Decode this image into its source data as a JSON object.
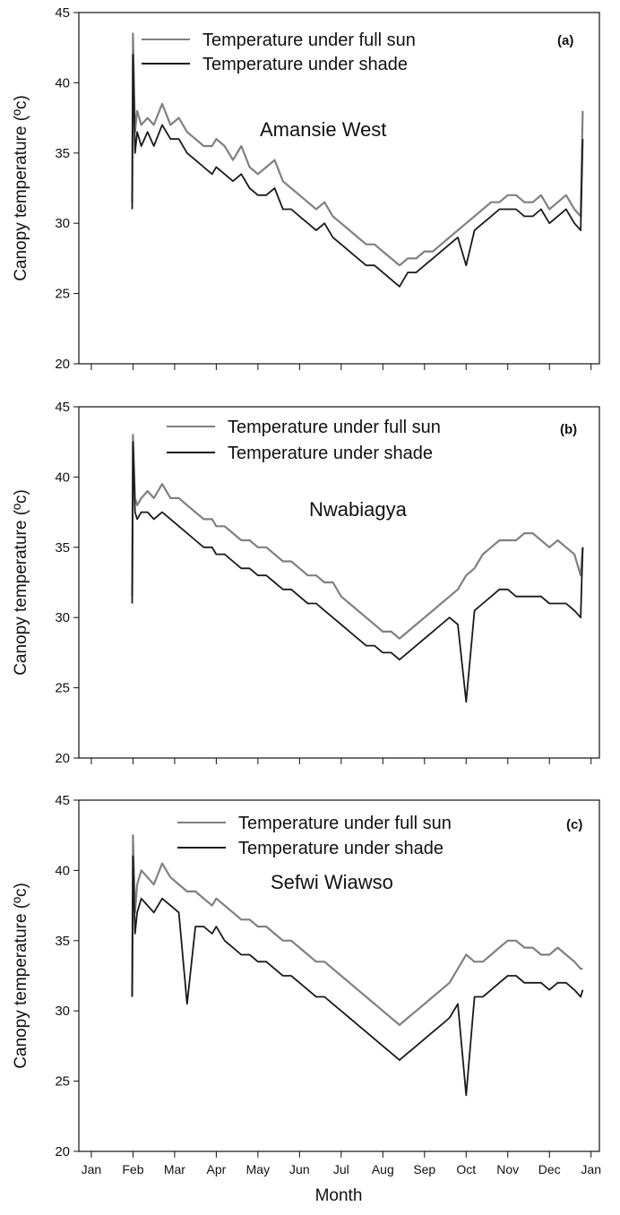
{
  "chart_data": [
    {
      "type": "line",
      "panel": "(a)",
      "annotation": "Amansie West",
      "ylabel": "Canopy temperature (ºc)",
      "xlabel": "",
      "ylim": [
        20,
        45
      ],
      "y_ticks": [
        20,
        25,
        30,
        35,
        40,
        45
      ],
      "legend": "top-left",
      "grid": false,
      "x_unit": "month index (0 = Jan, 12 = Jan of following year)",
      "series": [
        {
          "name": "Temperature under full sun",
          "color": "#808080",
          "x": [
            0.98,
            1.0,
            1.05,
            1.1,
            1.2,
            1.35,
            1.5,
            1.7,
            1.9,
            2.1,
            2.3,
            2.5,
            2.7,
            2.9,
            3.0,
            3.2,
            3.4,
            3.6,
            3.8,
            4.0,
            4.2,
            4.4,
            4.6,
            4.8,
            5.0,
            5.2,
            5.4,
            5.6,
            5.8,
            6.0,
            6.2,
            6.4,
            6.6,
            6.8,
            7.0,
            7.2,
            7.4,
            7.6,
            7.8,
            8.0,
            8.2,
            8.4,
            8.6,
            8.8,
            9.0,
            9.2,
            9.4,
            9.6,
            9.8,
            10.0,
            10.2,
            10.4,
            10.6,
            10.8,
            11.0,
            11.2,
            11.4,
            11.6,
            11.75,
            11.8
          ],
          "y": [
            31.5,
            43.5,
            36.5,
            38,
            37,
            37.5,
            37,
            38.5,
            37,
            37.5,
            36.5,
            36,
            35.5,
            35.5,
            36,
            35.5,
            34.5,
            35.5,
            34,
            33.5,
            34,
            34.5,
            33,
            32.5,
            32,
            31.5,
            31,
            31.5,
            30.5,
            30,
            29.5,
            29,
            28.5,
            28.5,
            28,
            27.5,
            27,
            27.5,
            27.5,
            28,
            28,
            28.5,
            29,
            29.5,
            30,
            30.5,
            31,
            31.5,
            31.5,
            32,
            32,
            31.5,
            31.5,
            32,
            31,
            31.5,
            32,
            31,
            30.5,
            38
          ]
        },
        {
          "name": "Temperature under shade",
          "color": "#1a1a1a",
          "x": [
            0.98,
            1.0,
            1.05,
            1.1,
            1.2,
            1.35,
            1.5,
            1.7,
            1.9,
            2.1,
            2.3,
            2.5,
            2.7,
            2.9,
            3.0,
            3.2,
            3.4,
            3.6,
            3.8,
            4.0,
            4.2,
            4.4,
            4.6,
            4.8,
            5.0,
            5.2,
            5.4,
            5.6,
            5.8,
            6.0,
            6.2,
            6.4,
            6.6,
            6.8,
            7.0,
            7.2,
            7.4,
            7.6,
            7.8,
            8.0,
            8.2,
            8.4,
            8.6,
            8.8,
            9.0,
            9.2,
            9.4,
            9.6,
            9.8,
            10.0,
            10.2,
            10.4,
            10.6,
            10.8,
            11.0,
            11.2,
            11.4,
            11.6,
            11.75,
            11.8
          ],
          "y": [
            31,
            42,
            35,
            36.5,
            35.5,
            36.5,
            35.5,
            37,
            36,
            36,
            35,
            34.5,
            34,
            33.5,
            34,
            33.5,
            33,
            33.5,
            32.5,
            32,
            32,
            32.5,
            31,
            31,
            30.5,
            30,
            29.5,
            30,
            29,
            28.5,
            28,
            27.5,
            27,
            27,
            26.5,
            26,
            25.5,
            26.5,
            26.5,
            27,
            27.5,
            28,
            28.5,
            29,
            27,
            29.5,
            30,
            30.5,
            31,
            31,
            31,
            30.5,
            30.5,
            31,
            30,
            30.5,
            31,
            30,
            29.5,
            36
          ]
        }
      ]
    },
    {
      "type": "line",
      "panel": "(b)",
      "annotation": "Nwabiagya",
      "ylabel": "Canopy temperature (ºc)",
      "xlabel": "",
      "ylim": [
        20,
        45
      ],
      "y_ticks": [
        20,
        25,
        30,
        35,
        40,
        45
      ],
      "legend": "top-center",
      "grid": false,
      "x_unit": "month index (0 = Jan, 12 = Jan of following year)",
      "series": [
        {
          "name": "Temperature under full sun",
          "color": "#808080",
          "x": [
            0.98,
            1.0,
            1.05,
            1.1,
            1.2,
            1.35,
            1.5,
            1.7,
            1.9,
            2.1,
            2.3,
            2.5,
            2.7,
            2.9,
            3.0,
            3.2,
            3.4,
            3.6,
            3.8,
            4.0,
            4.2,
            4.4,
            4.6,
            4.8,
            5.0,
            5.2,
            5.4,
            5.6,
            5.8,
            6.0,
            6.2,
            6.4,
            6.6,
            6.8,
            7.0,
            7.2,
            7.4,
            7.6,
            7.8,
            8.0,
            8.2,
            8.4,
            8.6,
            8.8,
            9.0,
            9.2,
            9.4,
            9.6,
            9.8,
            10.0,
            10.2,
            10.4,
            10.6,
            10.8,
            11.0,
            11.2,
            11.4,
            11.6,
            11.75,
            11.8
          ],
          "y": [
            31.5,
            43,
            38.5,
            38,
            38.5,
            39,
            38.5,
            39.5,
            38.5,
            38.5,
            38,
            37.5,
            37,
            37,
            36.5,
            36.5,
            36,
            35.5,
            35.5,
            35,
            35,
            34.5,
            34,
            34,
            33.5,
            33,
            33,
            32.5,
            32.5,
            31.5,
            31,
            30.5,
            30,
            29.5,
            29,
            29,
            28.5,
            29,
            29.5,
            30,
            30.5,
            31,
            31.5,
            32,
            33,
            33.5,
            34.5,
            35,
            35.5,
            35.5,
            35.5,
            36,
            36,
            35.5,
            35,
            35.5,
            35,
            34.5,
            33,
            35
          ]
        },
        {
          "name": "Temperature under shade",
          "color": "#1a1a1a",
          "x": [
            0.98,
            1.0,
            1.05,
            1.1,
            1.2,
            1.35,
            1.5,
            1.7,
            1.9,
            2.1,
            2.3,
            2.5,
            2.7,
            2.9,
            3.0,
            3.2,
            3.4,
            3.6,
            3.8,
            4.0,
            4.2,
            4.4,
            4.6,
            4.8,
            5.0,
            5.2,
            5.4,
            5.6,
            5.8,
            6.0,
            6.2,
            6.4,
            6.6,
            6.8,
            7.0,
            7.2,
            7.4,
            7.6,
            7.8,
            8.0,
            8.2,
            8.4,
            8.6,
            8.8,
            9.0,
            9.2,
            9.4,
            9.6,
            9.8,
            10.0,
            10.2,
            10.4,
            10.6,
            10.8,
            11.0,
            11.2,
            11.4,
            11.6,
            11.75,
            11.8
          ],
          "y": [
            31,
            42.5,
            37.5,
            37,
            37.5,
            37.5,
            37,
            37.5,
            37,
            36.5,
            36,
            35.5,
            35,
            35,
            34.5,
            34.5,
            34,
            33.5,
            33.5,
            33,
            33,
            32.5,
            32,
            32,
            31.5,
            31,
            31,
            30.5,
            30,
            29.5,
            29,
            28.5,
            28,
            28,
            27.5,
            27.5,
            27,
            27.5,
            28,
            28.5,
            29,
            29.5,
            30,
            29.5,
            24,
            30.5,
            31,
            31.5,
            32,
            32,
            31.5,
            31.5,
            31.5,
            31.5,
            31,
            31,
            31,
            30.5,
            30,
            35
          ]
        }
      ]
    },
    {
      "type": "line",
      "panel": "(c)",
      "annotation": "Sefwi Wiawso",
      "ylabel": "Canopy temperature (ºc)",
      "xlabel": "Month",
      "ylim": [
        20,
        45
      ],
      "y_ticks": [
        20,
        25,
        30,
        35,
        40,
        45
      ],
      "categories": [
        "Jan",
        "Feb",
        "Mar",
        "Apr",
        "May",
        "Jun",
        "Jul",
        "Aug",
        "Sep",
        "Oct",
        "Nov",
        "Dec",
        "Jan"
      ],
      "legend": "top-center",
      "grid": false,
      "x_unit": "month index (0 = Jan, 12 = Jan of following year)",
      "series": [
        {
          "name": "Temperature under full sun",
          "color": "#808080",
          "x": [
            0.98,
            1.0,
            1.05,
            1.1,
            1.2,
            1.35,
            1.5,
            1.7,
            1.9,
            2.1,
            2.3,
            2.5,
            2.7,
            2.9,
            3.0,
            3.2,
            3.4,
            3.6,
            3.8,
            4.0,
            4.2,
            4.4,
            4.6,
            4.8,
            5.0,
            5.2,
            5.4,
            5.6,
            5.8,
            6.0,
            6.2,
            6.4,
            6.6,
            6.8,
            7.0,
            7.2,
            7.4,
            7.6,
            7.8,
            8.0,
            8.2,
            8.4,
            8.6,
            8.8,
            9.0,
            9.2,
            9.4,
            9.6,
            9.8,
            10.0,
            10.2,
            10.4,
            10.6,
            10.8,
            11.0,
            11.2,
            11.4,
            11.6,
            11.75,
            11.8
          ],
          "y": [
            31,
            42.5,
            37,
            39,
            40,
            39.5,
            39,
            40.5,
            39.5,
            39,
            38.5,
            38.5,
            38,
            37.5,
            38,
            37.5,
            37,
            36.5,
            36.5,
            36,
            36,
            35.5,
            35,
            35,
            34.5,
            34,
            33.5,
            33.5,
            33,
            32.5,
            32,
            31.5,
            31,
            30.5,
            30,
            29.5,
            29,
            29.5,
            30,
            30.5,
            31,
            31.5,
            32,
            33,
            34,
            33.5,
            33.5,
            34,
            34.5,
            35,
            35,
            34.5,
            34.5,
            34,
            34,
            34.5,
            34,
            33.5,
            33,
            33
          ]
        },
        {
          "name": "Temperature under shade",
          "color": "#1a1a1a",
          "x": [
            0.98,
            1.0,
            1.05,
            1.1,
            1.2,
            1.35,
            1.5,
            1.7,
            1.9,
            2.1,
            2.3,
            2.5,
            2.7,
            2.9,
            3.0,
            3.2,
            3.4,
            3.6,
            3.8,
            4.0,
            4.2,
            4.4,
            4.6,
            4.8,
            5.0,
            5.2,
            5.4,
            5.6,
            5.8,
            6.0,
            6.2,
            6.4,
            6.6,
            6.8,
            7.0,
            7.2,
            7.4,
            7.6,
            7.8,
            8.0,
            8.2,
            8.4,
            8.6,
            8.8,
            9.0,
            9.2,
            9.4,
            9.6,
            9.8,
            10.0,
            10.2,
            10.4,
            10.6,
            10.8,
            11.0,
            11.2,
            11.4,
            11.6,
            11.75,
            11.8
          ],
          "y": [
            31,
            41,
            35.5,
            37,
            38,
            37.5,
            37,
            38,
            37.5,
            37,
            30.5,
            36,
            36,
            35.5,
            36,
            35,
            34.5,
            34,
            34,
            33.5,
            33.5,
            33,
            32.5,
            32.5,
            32,
            31.5,
            31,
            31,
            30.5,
            30,
            29.5,
            29,
            28.5,
            28,
            27.5,
            27,
            26.5,
            27,
            27.5,
            28,
            28.5,
            29,
            29.5,
            30.5,
            24,
            31,
            31,
            31.5,
            32,
            32.5,
            32.5,
            32,
            32,
            32,
            31.5,
            32,
            32,
            31.5,
            31,
            31.5
          ]
        }
      ]
    }
  ]
}
